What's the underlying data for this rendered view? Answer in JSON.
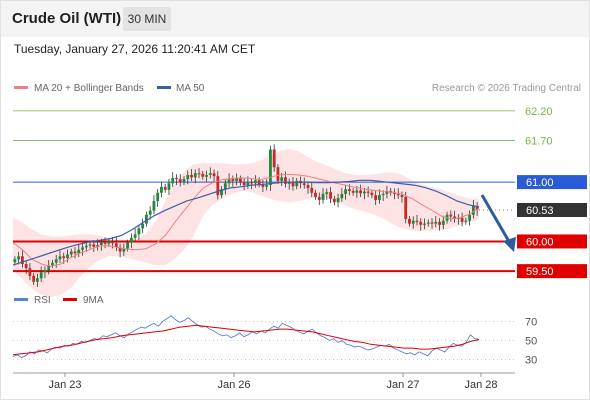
{
  "header": {
    "instrument": "Crude Oil (WTI)",
    "timeframe": "30 MIN"
  },
  "datetime": "Tuesday, January 27, 2026 11:20:41 AM CET",
  "legend": {
    "bollinger": "MA 20 + Bollinger Bands",
    "ma50": "MA 50"
  },
  "source": "Research © 2026 Trading Central",
  "rsi_legend": {
    "rsi": "RSI",
    "ma9": "9MA"
  },
  "colors": {
    "bollinger": "#f08080",
    "ma50": "#3b5ea8",
    "resistance": "#7cb342",
    "pivot": "#2a5bd7",
    "support": "#e00000",
    "current": "#333333",
    "rsi": "#5b7fd6"
  },
  "chart_data": [
    {
      "type": "candlestick",
      "y_range": [
        59.3,
        62.4
      ],
      "x_labels": [
        "Jan 23",
        "Jan 26",
        "Jan 27",
        "Jan 28"
      ],
      "levels": [
        {
          "value": 62.2,
          "label": "62.20",
          "kind": "resistance"
        },
        {
          "value": 61.7,
          "label": "61.70",
          "kind": "resistance"
        },
        {
          "value": 61.0,
          "label": "61.00",
          "kind": "pivot"
        },
        {
          "value": 60.53,
          "label": "60.53",
          "kind": "current"
        },
        {
          "value": 60.0,
          "label": "60.00",
          "kind": "support"
        },
        {
          "value": 59.5,
          "label": "59.50",
          "kind": "support"
        }
      ],
      "closes": [
        59.7,
        59.75,
        59.62,
        59.55,
        59.42,
        59.32,
        59.38,
        59.48,
        59.52,
        59.6,
        59.64,
        59.7,
        59.75,
        59.72,
        59.78,
        59.83,
        59.8,
        59.86,
        59.9,
        59.93,
        59.95,
        59.91,
        59.94,
        59.98,
        59.96,
        60.0,
        59.97,
        59.9,
        59.83,
        59.88,
        59.98,
        60.06,
        60.12,
        60.22,
        60.3,
        60.45,
        60.52,
        60.68,
        60.82,
        60.92,
        60.87,
        60.98,
        61.07,
        61.05,
        61.0,
        61.05,
        61.12,
        61.08,
        61.15,
        61.14,
        61.09,
        61.12,
        61.15,
        61.1,
        60.78,
        60.88,
        60.98,
        61.05,
        61.02,
        61.06,
        60.99,
        60.95,
        61.0,
        60.98,
        61.03,
        60.96,
        60.92,
        60.95,
        61.55,
        61.25,
        61.02,
        61.08,
        60.97,
        61.0,
        60.93,
        61.02,
        60.98,
        60.95,
        60.9,
        60.82,
        60.75,
        60.7,
        60.8,
        60.83,
        60.72,
        60.66,
        60.73,
        60.8,
        60.88,
        60.85,
        60.82,
        60.86,
        60.81,
        60.84,
        60.82,
        60.78,
        60.7,
        60.78,
        60.8,
        60.85,
        60.82,
        60.8,
        60.78,
        60.75,
        60.38,
        60.3,
        60.35,
        60.33,
        60.28,
        60.3,
        60.32,
        60.3,
        60.33,
        60.28,
        60.35,
        60.45,
        60.42,
        60.38,
        60.4,
        60.33,
        60.35,
        60.45,
        60.6,
        60.53
      ],
      "ma50": [
        59.6,
        59.66,
        59.72,
        59.78,
        59.84,
        59.9,
        59.95,
        59.99,
        60.02,
        60.05,
        60.1,
        60.2,
        60.32,
        60.43,
        60.52,
        60.6,
        60.68,
        60.73,
        60.79,
        60.85,
        60.9,
        60.92,
        60.95,
        60.96,
        60.98,
        61.0,
        61.0,
        61.0,
        60.99,
        60.99,
        61.0,
        61.01,
        61.03,
        61.03,
        61.01,
        60.99,
        60.97,
        60.95,
        60.91,
        60.85,
        60.77,
        60.68,
        60.62,
        60.58
      ],
      "bollinger_mid": [
        59.98,
        59.86,
        59.7,
        59.62,
        59.58,
        59.62,
        59.72,
        59.8,
        59.86,
        59.92,
        59.93,
        59.9,
        59.87,
        59.86,
        59.88,
        59.96,
        60.1,
        60.32,
        60.52,
        60.72,
        60.9,
        60.99,
        61.04,
        61.06,
        61.07,
        61.06,
        61.04,
        61.08,
        61.12,
        61.13,
        61.12,
        61.1,
        61.06,
        61.02,
        60.98,
        60.95,
        60.91,
        60.88,
        60.86,
        60.84,
        60.83,
        60.79,
        60.72,
        60.62,
        60.53,
        60.43,
        60.38,
        60.4,
        60.46,
        60.56
      ],
      "bollinger_upper": [
        60.4,
        60.32,
        60.2,
        60.12,
        60.08,
        60.08,
        60.1,
        60.12,
        60.12,
        60.1,
        60.06,
        60.04,
        60.02,
        60.04,
        60.12,
        60.34,
        60.68,
        60.98,
        61.18,
        61.3,
        61.32,
        61.32,
        61.32,
        61.3,
        61.3,
        61.31,
        61.36,
        61.44,
        61.52,
        61.56,
        61.52,
        61.42,
        61.34,
        61.28,
        61.21,
        61.15,
        61.12,
        61.12,
        61.13,
        61.16,
        61.16,
        61.12,
        61.02,
        60.96,
        60.92,
        60.88,
        60.82,
        60.76,
        60.72,
        60.72
      ],
      "bollinger_lower": [
        59.52,
        59.36,
        59.2,
        59.1,
        59.06,
        59.1,
        59.2,
        59.4,
        59.56,
        59.68,
        59.75,
        59.76,
        59.72,
        59.68,
        59.64,
        59.6,
        59.6,
        59.7,
        59.86,
        60.1,
        60.44,
        60.62,
        60.72,
        60.8,
        60.85,
        60.84,
        60.78,
        60.72,
        60.68,
        60.66,
        60.68,
        60.72,
        60.74,
        60.73,
        60.68,
        60.6,
        60.54,
        60.5,
        60.45,
        60.38,
        60.28,
        60.22,
        60.18,
        60.18,
        60.18,
        60.2,
        60.22,
        60.28,
        60.33,
        60.36
      ]
    },
    {
      "type": "line",
      "title": "RSI",
      "y_ticks": [
        70,
        50,
        30
      ],
      "y_range": [
        20,
        80
      ],
      "series": [
        {
          "name": "RSI",
          "values": [
            33,
            35,
            32,
            34,
            38,
            36,
            40,
            39,
            37,
            41,
            43,
            42,
            45,
            44,
            47,
            46,
            49,
            48,
            50,
            52,
            51,
            55,
            54,
            56,
            58,
            55,
            53,
            57,
            59,
            62,
            64,
            63,
            66,
            68,
            65,
            70,
            73,
            76,
            72,
            69,
            71,
            74,
            70,
            67,
            64,
            65,
            62,
            60,
            57,
            55,
            56,
            53,
            55,
            58,
            54,
            56,
            59,
            57,
            60,
            58,
            62,
            65,
            63,
            68,
            66,
            64,
            61,
            59,
            57,
            60,
            62,
            58,
            55,
            53,
            50,
            52,
            48,
            50,
            46,
            45,
            43,
            44,
            42,
            40,
            41,
            43,
            45,
            44,
            46,
            42,
            40,
            38,
            36,
            37,
            35,
            38,
            36,
            34,
            39,
            42,
            40,
            38,
            43,
            47,
            45,
            44,
            48,
            56,
            52,
            51
          ]
        },
        {
          "name": "9MA",
          "values": [
            35,
            36,
            37,
            38,
            40,
            42,
            44,
            45,
            47,
            49,
            51,
            52,
            53,
            55,
            56,
            57,
            58,
            59,
            60,
            62,
            64,
            65,
            66,
            65,
            64,
            63,
            62,
            61,
            60,
            59,
            60,
            61,
            62,
            62,
            61,
            60,
            59,
            57,
            55,
            53,
            51,
            49,
            48,
            46,
            45,
            44,
            43,
            42,
            42,
            41,
            41,
            42,
            43,
            44,
            46,
            49,
            51
          ]
        }
      ]
    }
  ]
}
